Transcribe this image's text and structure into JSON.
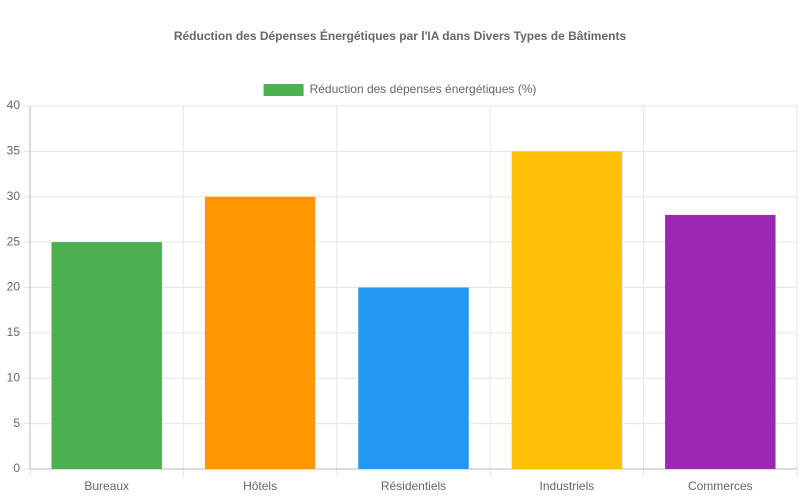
{
  "chart_data": {
    "type": "bar",
    "title": "Réduction des Dépenses Énergétiques par l'IA dans Divers Types de Bâtiments",
    "categories": [
      "Bureaux",
      "Hôtels",
      "Résidentiels",
      "Industriels",
      "Commerces"
    ],
    "series": [
      {
        "name": "Réduction des dépenses énergétiques (%)",
        "colors": [
          "#4caf50",
          "#ff9800",
          "#2196f3",
          "#ffc107",
          "#9c27b0"
        ],
        "values": [
          25,
          30,
          20,
          35,
          28
        ]
      }
    ],
    "ylim": [
      0,
      40
    ],
    "yticks": [
      0,
      5,
      10,
      15,
      20,
      25,
      30,
      35,
      40
    ],
    "grid": true,
    "legend": "top"
  }
}
